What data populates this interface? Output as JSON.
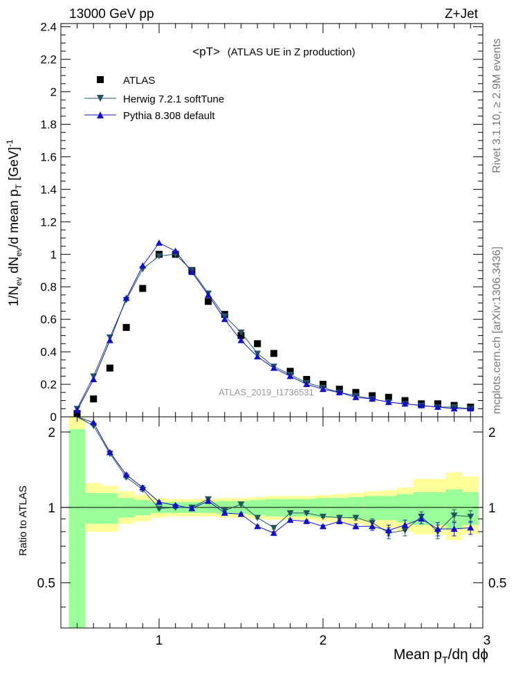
{
  "header": {
    "left": "13000 GeV pp",
    "right": "Z+Jet"
  },
  "side_text": {
    "top": "Rivet 3.1.10, ≥ 2.9M events",
    "bottom": "mcplots.cern.ch [arXiv:1306.3436]"
  },
  "chart_data": [
    {
      "type": "scatter",
      "title": "<pT>",
      "subtitle": "(ATLAS UE in Z production)",
      "annotation": "ATLAS_2019_I1736531",
      "ylabel_parts": [
        "1/N",
        "ev",
        " dN",
        "ev",
        "/d mean p",
        "T",
        " [GeV]",
        "-1"
      ],
      "xlim": [
        0.42,
        3.0
      ],
      "ylim": [
        0,
        2.42
      ],
      "yticks": [
        0,
        0.2,
        0.4,
        0.6,
        0.8,
        1,
        1.2,
        1.4,
        1.6,
        1.8,
        2,
        2.2,
        2.4
      ],
      "ytick_labels": [
        "0",
        "0.2",
        "0.4",
        "0.6",
        "0.8",
        "1",
        "1.2",
        "1.4",
        "1.6",
        "1.8",
        "2",
        "2.2",
        "2.4"
      ],
      "legend_position": "top-left",
      "x": [
        0.5,
        0.6,
        0.7,
        0.8,
        0.9,
        1.0,
        1.1,
        1.2,
        1.3,
        1.4,
        1.5,
        1.6,
        1.7,
        1.8,
        1.9,
        2.0,
        2.1,
        2.2,
        2.3,
        2.4,
        2.5,
        2.6,
        2.7,
        2.8,
        2.9
      ],
      "series": [
        {
          "name": "ATLAS",
          "marker": "square",
          "color": "#000000",
          "values": [
            0.02,
            0.11,
            0.3,
            0.55,
            0.79,
            1.0,
            1.0,
            0.9,
            0.71,
            0.63,
            0.5,
            0.45,
            0.39,
            0.28,
            0.23,
            0.2,
            0.17,
            0.15,
            0.13,
            0.12,
            0.1,
            0.08,
            0.08,
            0.07,
            0.06
          ]
        },
        {
          "name": "Herwig 7.2.1 softTune",
          "marker": "triangle-down",
          "color": "#1f5560",
          "values": [
            0.05,
            0.25,
            0.49,
            0.72,
            0.91,
            0.99,
            1.0,
            0.9,
            0.76,
            0.62,
            0.52,
            0.39,
            0.31,
            0.26,
            0.21,
            0.18,
            0.15,
            0.13,
            0.11,
            0.09,
            0.08,
            0.07,
            0.06,
            0.06,
            0.05
          ]
        },
        {
          "name": "Pythia 8.308 default",
          "marker": "triangle-up",
          "color": "#1010cc",
          "values": [
            0.04,
            0.23,
            0.47,
            0.73,
            0.93,
            1.07,
            1.02,
            0.89,
            0.75,
            0.6,
            0.47,
            0.37,
            0.3,
            0.25,
            0.2,
            0.17,
            0.15,
            0.12,
            0.11,
            0.09,
            0.08,
            0.07,
            0.06,
            0.05,
            0.05
          ]
        }
      ]
    },
    {
      "type": "line",
      "ylabel": "Ratio to ATLAS",
      "xlabel_parts": [
        "Mean p",
        "T",
        "/dη dϕ"
      ],
      "xlim": [
        0.42,
        3.0
      ],
      "ylim": [
        0.33,
        2.3
      ],
      "xticks": [
        1,
        2,
        3
      ],
      "xtick_labels": [
        "1",
        "2",
        "3"
      ],
      "yticks": [
        0.5,
        1,
        2
      ],
      "ytick_labels": [
        "0.5",
        "1",
        "2"
      ],
      "x": [
        0.5,
        0.6,
        0.7,
        0.8,
        0.9,
        1.0,
        1.1,
        1.2,
        1.3,
        1.4,
        1.5,
        1.6,
        1.7,
        1.8,
        1.9,
        2.0,
        2.1,
        2.2,
        2.3,
        2.4,
        2.5,
        2.6,
        2.7,
        2.8,
        2.9
      ],
      "band_edges": [
        0.45,
        0.55,
        0.65,
        0.75,
        0.85,
        0.95,
        1.05,
        1.15,
        1.25,
        1.35,
        1.45,
        1.55,
        1.65,
        1.75,
        1.85,
        1.95,
        2.05,
        2.15,
        2.25,
        2.35,
        2.45,
        2.55,
        2.65,
        2.75,
        2.85,
        2.95
      ],
      "band_yellow": {
        "low": [
          0.3,
          0.8,
          0.8,
          0.86,
          0.88,
          0.91,
          0.92,
          0.92,
          0.92,
          0.91,
          0.91,
          0.9,
          0.89,
          0.89,
          0.89,
          0.88,
          0.87,
          0.86,
          0.84,
          0.83,
          0.8,
          0.78,
          0.78,
          0.74,
          0.78
        ],
        "high": [
          2.3,
          1.25,
          1.22,
          1.16,
          1.12,
          1.09,
          1.08,
          1.08,
          1.08,
          1.09,
          1.09,
          1.1,
          1.11,
          1.11,
          1.11,
          1.12,
          1.13,
          1.14,
          1.16,
          1.17,
          1.2,
          1.3,
          1.3,
          1.38,
          1.33
        ]
      },
      "band_green": {
        "low": [
          0.3,
          0.86,
          0.86,
          0.91,
          0.93,
          0.95,
          0.95,
          0.95,
          0.95,
          0.94,
          0.94,
          0.93,
          0.92,
          0.92,
          0.92,
          0.91,
          0.91,
          0.9,
          0.89,
          0.89,
          0.87,
          0.85,
          0.85,
          0.82,
          0.85
        ],
        "high": [
          2.05,
          1.14,
          1.14,
          1.09,
          1.07,
          1.05,
          1.05,
          1.05,
          1.05,
          1.06,
          1.06,
          1.07,
          1.08,
          1.08,
          1.08,
          1.09,
          1.09,
          1.1,
          1.11,
          1.11,
          1.13,
          1.15,
          1.15,
          1.18,
          1.15
        ]
      },
      "series": [
        {
          "name": "Herwig 7.2.1 softTune",
          "color": "#1f5560",
          "marker": "triangle-down",
          "values": [
            2.3,
            2.12,
            1.64,
            1.32,
            1.18,
            0.99,
            1.0,
            1.0,
            1.08,
            0.97,
            1.03,
            0.91,
            0.83,
            0.95,
            0.95,
            0.92,
            0.91,
            0.91,
            0.87,
            0.79,
            0.81,
            0.92,
            0.8,
            0.93,
            0.92
          ],
          "err": [
            0.0,
            0.0,
            0.02,
            0.02,
            0.02,
            0.01,
            0.01,
            0.01,
            0.01,
            0.01,
            0.01,
            0.01,
            0.01,
            0.01,
            0.01,
            0.01,
            0.02,
            0.02,
            0.03,
            0.04,
            0.04,
            0.04,
            0.05,
            0.05,
            0.05
          ]
        },
        {
          "name": "Pythia 8.308 default",
          "color": "#1010cc",
          "marker": "triangle-up",
          "values": [
            2.3,
            2.18,
            1.66,
            1.35,
            1.2,
            1.05,
            1.02,
            0.99,
            1.06,
            0.95,
            0.94,
            0.84,
            0.79,
            0.89,
            0.88,
            0.84,
            0.88,
            0.84,
            0.84,
            0.81,
            0.85,
            0.9,
            0.82,
            0.82,
            0.83
          ],
          "err": [
            0.0,
            0.0,
            0.02,
            0.02,
            0.02,
            0.01,
            0.01,
            0.01,
            0.01,
            0.01,
            0.01,
            0.01,
            0.01,
            0.01,
            0.01,
            0.01,
            0.02,
            0.02,
            0.03,
            0.04,
            0.04,
            0.04,
            0.05,
            0.05,
            0.05
          ]
        }
      ]
    }
  ]
}
